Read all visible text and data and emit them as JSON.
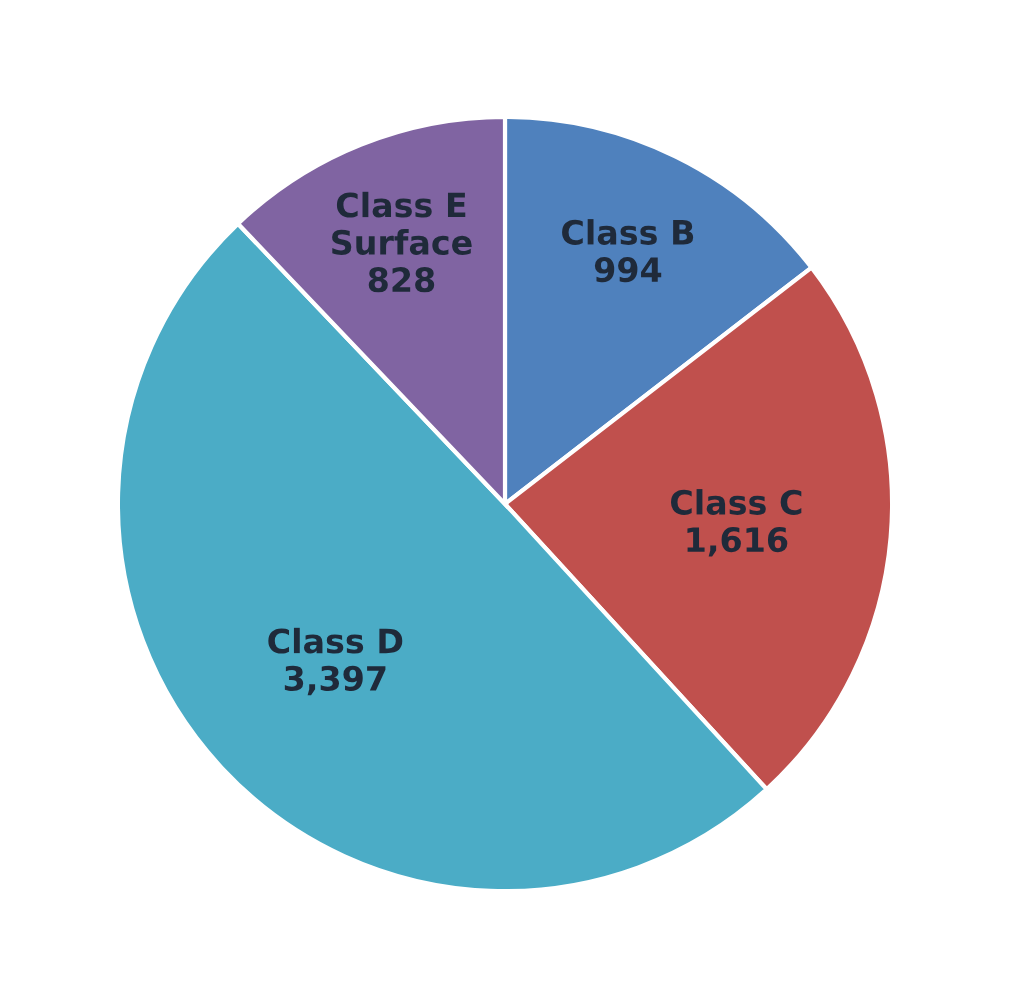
{
  "chart_data": {
    "type": "pie",
    "categories": [
      "Class B",
      "Class C",
      "Class D",
      "Class E\nSurface"
    ],
    "values": [
      994,
      1616,
      3397,
      828
    ],
    "value_labels": [
      "994",
      "1,616",
      "3,397",
      "828"
    ],
    "colors": [
      "#4f81bd",
      "#c0504d",
      "#4bacc6",
      "#8064a2"
    ]
  }
}
